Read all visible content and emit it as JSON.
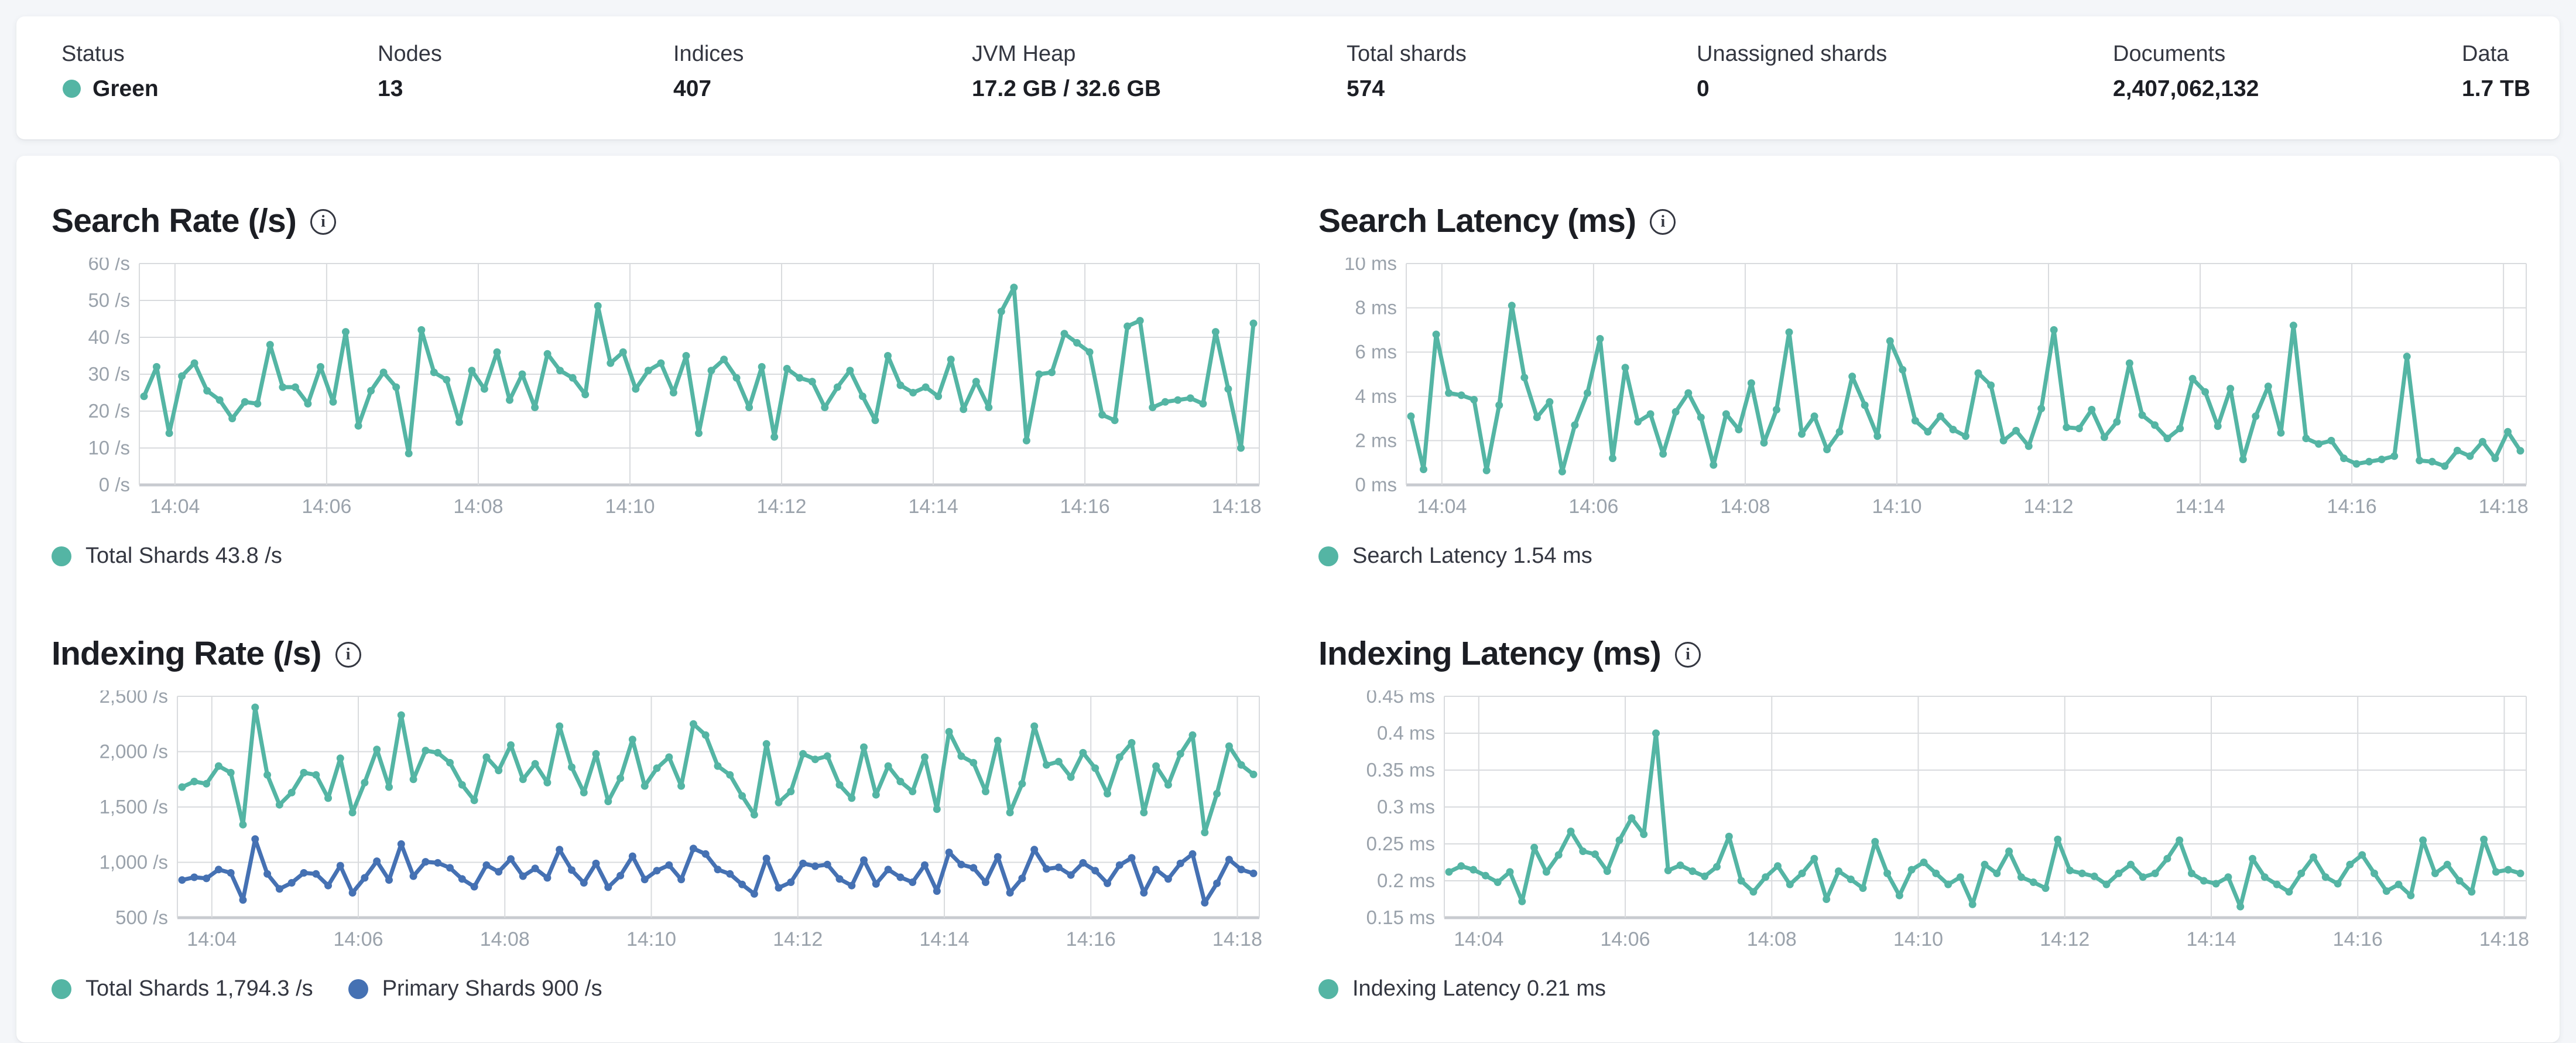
{
  "status_bar": {
    "status_dot_color": "#54b5a4",
    "stats": [
      {
        "label": "Status",
        "value": "Green",
        "has_dot": true
      },
      {
        "label": "Nodes",
        "value": "13"
      },
      {
        "label": "Indices",
        "value": "407"
      },
      {
        "label": "JVM Heap",
        "value": "17.2 GB / 32.6 GB"
      },
      {
        "label": "Total shards",
        "value": "574"
      },
      {
        "label": "Unassigned shards",
        "value": "0"
      },
      {
        "label": "Documents",
        "value": "2,407,062,132"
      },
      {
        "label": "Data",
        "value": "1.7 TB"
      }
    ]
  },
  "colors": {
    "teal": "#54b5a4",
    "blue": "#4571b3",
    "grid": "#d9dbde",
    "axis": "#c8cbd0",
    "tick_text": "#9aa2ab"
  },
  "chart_data": [
    {
      "type": "line",
      "title": "Search Rate (/s)",
      "info_icon": "info-icon",
      "ylim": [
        0,
        60
      ],
      "y_ticks": {
        "values": [
          0,
          10,
          20,
          30,
          40,
          50,
          60
        ],
        "labels": [
          "0 /s",
          "10 /s",
          "20 /s",
          "30 /s",
          "40 /s",
          "50 /s",
          "60 /s"
        ]
      },
      "x_range": [
        843.53,
        858.3
      ],
      "x_ticks": {
        "values": [
          844,
          846,
          848,
          850,
          852,
          854,
          856,
          858
        ],
        "labels": [
          "14:04",
          "14:06",
          "14:08",
          "14:10",
          "14:12",
          "14:14",
          "14:16",
          "14:18"
        ]
      },
      "legend": [
        {
          "label": "Total Shards 43.8 /s"
        }
      ],
      "series": [
        {
          "name": "Total Shards",
          "current": "43.8 /s",
          "color": "#54b5a4",
          "values": [
            24,
            32,
            14,
            29.5,
            33,
            25.5,
            23,
            18,
            22.5,
            22,
            38,
            26.5,
            26.5,
            22,
            32,
            22.5,
            41.5,
            16,
            25.5,
            30.5,
            26.5,
            8.5,
            42,
            30.5,
            28.5,
            17,
            31,
            26,
            36,
            23,
            30,
            21,
            35.5,
            31,
            29,
            24.5,
            48.5,
            33,
            36,
            26,
            31,
            33,
            25,
            35,
            14,
            31,
            34,
            29,
            21,
            32,
            13,
            31.5,
            29,
            28,
            21,
            26.5,
            31,
            24,
            17.5,
            35,
            27,
            25,
            26.5,
            24,
            34,
            20.5,
            28,
            21,
            47,
            53.5,
            12,
            30,
            30.5,
            41,
            38.5,
            36,
            19,
            17.5,
            43,
            44.5,
            21,
            22.5,
            23,
            23.5,
            22,
            41.5,
            26,
            10,
            43.8
          ]
        }
      ]
    },
    {
      "type": "line",
      "title": "Search Latency (ms)",
      "info_icon": "info-icon",
      "ylim": [
        0,
        10
      ],
      "y_ticks": {
        "values": [
          0,
          2,
          4,
          6,
          8,
          10
        ],
        "labels": [
          "0 ms",
          "2 ms",
          "4 ms",
          "6 ms",
          "8 ms",
          "10 ms"
        ]
      },
      "x_range": [
        843.53,
        858.3
      ],
      "x_ticks": {
        "values": [
          844,
          846,
          848,
          850,
          852,
          854,
          856,
          858
        ],
        "labels": [
          "14:04",
          "14:06",
          "14:08",
          "14:10",
          "14:12",
          "14:14",
          "14:16",
          "14:18"
        ]
      },
      "legend": [
        {
          "label": "Search Latency 1.54 ms"
        }
      ],
      "series": [
        {
          "name": "Search Latency",
          "current": "1.54 ms",
          "color": "#54b5a4",
          "values": [
            3.1,
            0.7,
            6.8,
            4.15,
            4.05,
            3.85,
            0.65,
            3.6,
            8.1,
            4.85,
            3.05,
            3.75,
            0.6,
            2.7,
            4.15,
            6.6,
            1.2,
            5.3,
            2.85,
            3.2,
            1.4,
            3.3,
            4.15,
            3.05,
            0.9,
            3.2,
            2.5,
            4.6,
            1.9,
            3.4,
            6.9,
            2.3,
            3.1,
            1.6,
            2.4,
            4.9,
            3.6,
            2.2,
            6.5,
            5.2,
            2.9,
            2.4,
            3.1,
            2.5,
            2.2,
            5.05,
            4.5,
            2.0,
            2.45,
            1.75,
            3.45,
            7.0,
            2.6,
            2.55,
            3.4,
            2.15,
            2.85,
            5.5,
            3.15,
            2.7,
            2.1,
            2.55,
            4.8,
            4.2,
            2.65,
            4.35,
            1.15,
            3.1,
            4.45,
            2.35,
            7.2,
            2.1,
            1.85,
            2.0,
            1.2,
            0.95,
            1.05,
            1.15,
            1.3,
            5.8,
            1.1,
            1.05,
            0.85,
            1.55,
            1.3,
            1.95,
            1.2,
            2.4,
            1.54
          ]
        }
      ]
    },
    {
      "type": "line",
      "title": "Indexing Rate (/s)",
      "info_icon": "info-icon",
      "ylim": [
        500,
        2500
      ],
      "y_ticks": {
        "values": [
          500,
          1000,
          1500,
          2000,
          2500
        ],
        "labels": [
          "500 /s",
          "1,000 /s",
          "1,500 /s",
          "2,000 /s",
          "2,500 /s"
        ]
      },
      "x_range": [
        843.53,
        858.3
      ],
      "x_ticks": {
        "values": [
          844,
          846,
          848,
          850,
          852,
          854,
          856,
          858
        ],
        "labels": [
          "14:04",
          "14:06",
          "14:08",
          "14:10",
          "14:12",
          "14:14",
          "14:16",
          "14:18"
        ]
      },
      "legend": [
        {
          "label": "Total Shards 1,794.3 /s"
        },
        {
          "label": "Primary Shards 900 /s"
        }
      ],
      "series": [
        {
          "name": "Total Shards",
          "current": "1,794.3 /s",
          "color": "#54b5a4",
          "values": [
            1680,
            1730,
            1710,
            1870,
            1810,
            1340,
            2400,
            1790,
            1520,
            1630,
            1810,
            1790,
            1580,
            1940,
            1450,
            1720,
            2020,
            1680,
            2330,
            1750,
            2010,
            1990,
            1900,
            1700,
            1560,
            1950,
            1830,
            2060,
            1750,
            1890,
            1720,
            2230,
            1860,
            1630,
            1980,
            1550,
            1760,
            2110,
            1690,
            1850,
            1950,
            1690,
            2250,
            2150,
            1870,
            1790,
            1600,
            1430,
            2070,
            1540,
            1640,
            1980,
            1930,
            1960,
            1700,
            1580,
            2040,
            1610,
            1870,
            1730,
            1640,
            1950,
            1480,
            2180,
            1960,
            1900,
            1640,
            2100,
            1450,
            1710,
            2230,
            1880,
            1910,
            1770,
            1990,
            1850,
            1620,
            1950,
            2080,
            1450,
            1870,
            1700,
            1980,
            2150,
            1270,
            1620,
            2050,
            1880,
            1794.3
          ]
        },
        {
          "name": "Primary Shards",
          "current": "900 /s",
          "color": "#4571b3",
          "values": [
            840,
            865,
            855,
            935,
            905,
            660,
            1210,
            895,
            760,
            815,
            905,
            895,
            790,
            970,
            725,
            860,
            1010,
            840,
            1165,
            875,
            1005,
            995,
            950,
            850,
            780,
            975,
            915,
            1030,
            875,
            945,
            860,
            1115,
            930,
            815,
            990,
            775,
            880,
            1055,
            845,
            925,
            975,
            845,
            1125,
            1075,
            935,
            895,
            800,
            715,
            1035,
            770,
            820,
            990,
            965,
            980,
            850,
            790,
            1020,
            805,
            935,
            865,
            820,
            975,
            740,
            1090,
            980,
            950,
            820,
            1050,
            725,
            855,
            1115,
            940,
            955,
            885,
            995,
            925,
            810,
            975,
            1040,
            725,
            935,
            850,
            990,
            1075,
            635,
            810,
            1025,
            935,
            900
          ]
        }
      ]
    },
    {
      "type": "line",
      "title": "Indexing Latency (ms)",
      "info_icon": "info-icon",
      "ylim": [
        0.15,
        0.45
      ],
      "y_ticks": {
        "values": [
          0.15,
          0.2,
          0.25,
          0.3,
          0.35,
          0.4,
          0.45
        ],
        "labels": [
          "0.15 ms",
          "0.2 ms",
          "0.25 ms",
          "0.3 ms",
          "0.35 ms",
          "0.4 ms",
          "0.45 ms"
        ]
      },
      "x_range": [
        843.53,
        858.3
      ],
      "x_ticks": {
        "values": [
          844,
          846,
          848,
          850,
          852,
          854,
          856,
          858
        ],
        "labels": [
          "14:04",
          "14:06",
          "14:08",
          "14:10",
          "14:12",
          "14:14",
          "14:16",
          "14:18"
        ]
      },
      "legend": [
        {
          "label": "Indexing Latency 0.21 ms"
        }
      ],
      "series": [
        {
          "name": "Indexing Latency",
          "current": "0.21 ms",
          "color": "#54b5a4",
          "values": [
            0.212,
            0.22,
            0.215,
            0.207,
            0.198,
            0.212,
            0.172,
            0.245,
            0.212,
            0.235,
            0.267,
            0.24,
            0.236,
            0.213,
            0.255,
            0.285,
            0.263,
            0.4,
            0.214,
            0.221,
            0.213,
            0.206,
            0.219,
            0.26,
            0.2,
            0.185,
            0.205,
            0.22,
            0.195,
            0.21,
            0.23,
            0.175,
            0.213,
            0.202,
            0.19,
            0.253,
            0.21,
            0.18,
            0.215,
            0.225,
            0.21,
            0.195,
            0.205,
            0.168,
            0.222,
            0.21,
            0.24,
            0.205,
            0.198,
            0.19,
            0.256,
            0.214,
            0.21,
            0.206,
            0.195,
            0.21,
            0.222,
            0.205,
            0.21,
            0.23,
            0.255,
            0.21,
            0.2,
            0.196,
            0.205,
            0.165,
            0.23,
            0.205,
            0.195,
            0.185,
            0.21,
            0.232,
            0.205,
            0.196,
            0.222,
            0.235,
            0.21,
            0.186,
            0.195,
            0.18,
            0.255,
            0.21,
            0.222,
            0.2,
            0.185,
            0.256,
            0.212,
            0.215,
            0.21
          ]
        }
      ]
    }
  ]
}
